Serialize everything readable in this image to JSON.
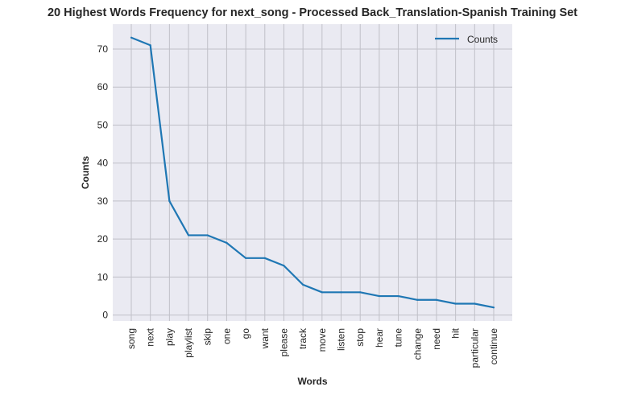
{
  "chart_data": {
    "type": "line",
    "title": "20 Highest Words Frequency for next_song - Processed Back_Translation-Spanish Training Set",
    "xlabel": "Words",
    "ylabel": "Counts",
    "categories": [
      "song",
      "next",
      "play",
      "playlist",
      "skip",
      "one",
      "go",
      "want",
      "please",
      "track",
      "move",
      "listen",
      "stop",
      "hear",
      "tune",
      "change",
      "need",
      "hit",
      "particular",
      "continue"
    ],
    "series": [
      {
        "name": "Counts",
        "values": [
          73,
          71,
          30,
          21,
          21,
          19,
          15,
          15,
          13,
          8,
          6,
          6,
          6,
          5,
          5,
          4,
          4,
          3,
          3,
          2
        ]
      }
    ],
    "yticks": [
      0,
      10,
      20,
      30,
      40,
      50,
      60,
      70
    ],
    "ylim": [
      -1.55,
      76.55
    ],
    "grid": true,
    "legend_position": "top-right",
    "colors": {
      "line": "#1f77b4",
      "plot_bg": "#eaeaf2",
      "grid": "#c0c0c8"
    }
  }
}
